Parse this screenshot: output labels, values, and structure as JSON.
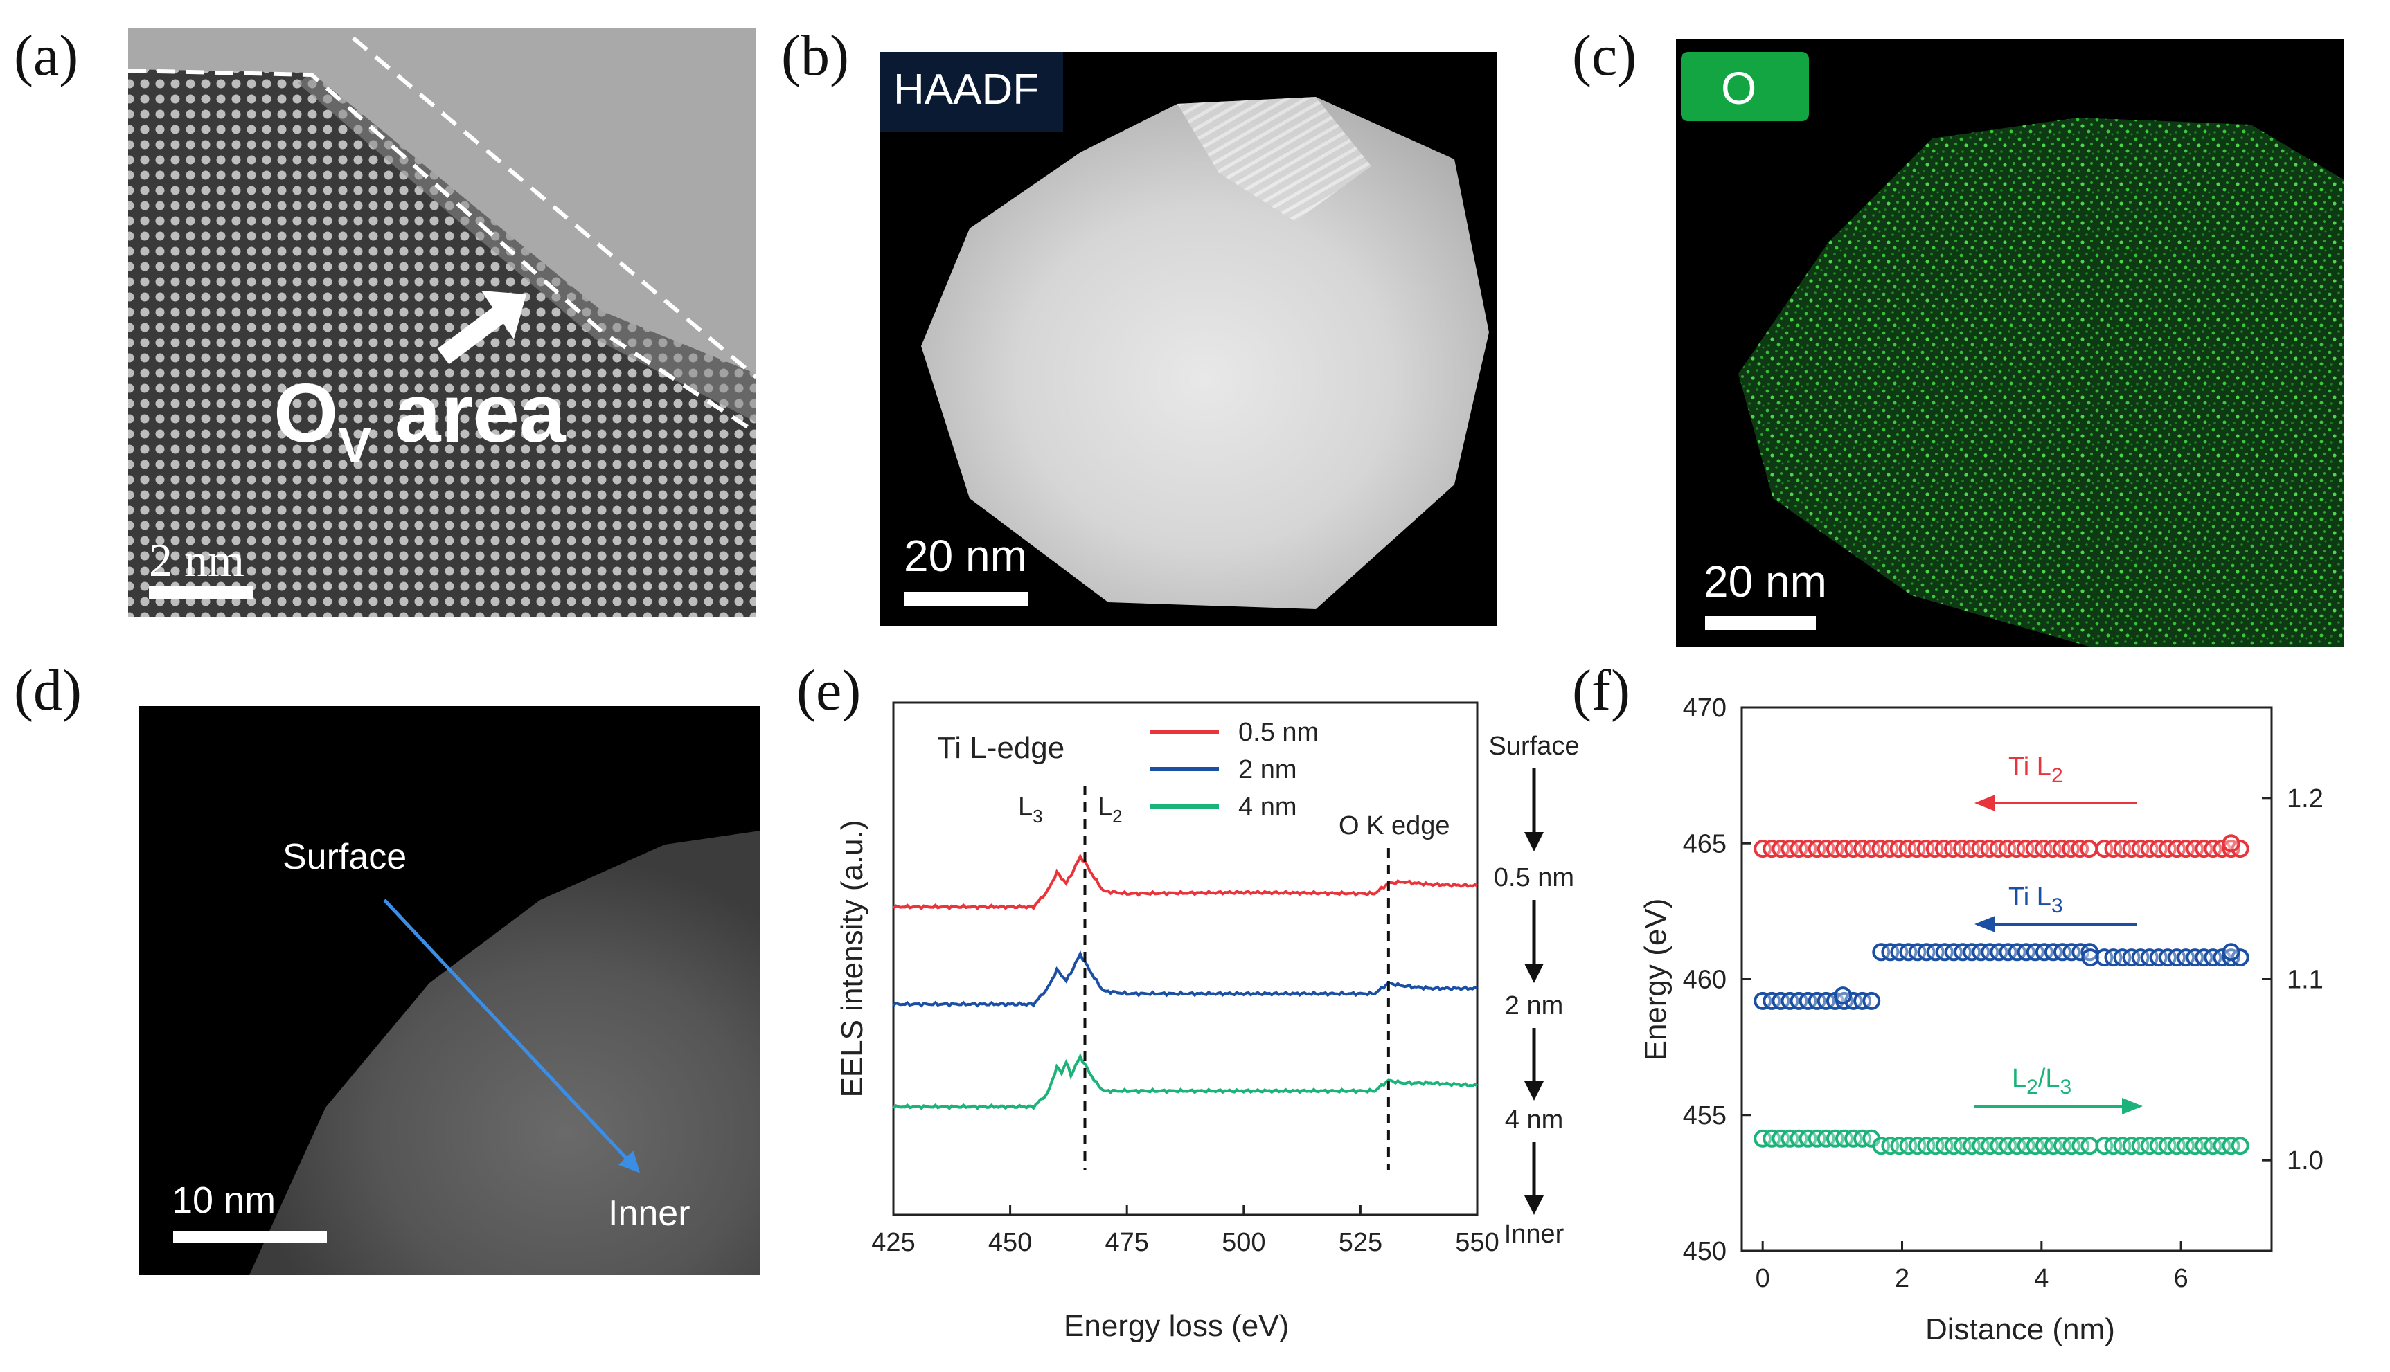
{
  "figure": {
    "panel_labels": [
      "(a)",
      "(b)",
      "(c)",
      "(d)",
      "(e)",
      "(f)"
    ],
    "panel_a": {
      "annotation_main": "O",
      "annotation_sub": "V",
      "annotation_rest": " area",
      "scalebar": "2 nm"
    },
    "panel_b": {
      "badge": "HAADF",
      "scalebar": "20 nm"
    },
    "panel_c": {
      "badge": "O",
      "scalebar": "20 nm"
    },
    "panel_d": {
      "surface_label": "Surface",
      "inner_label": "Inner",
      "scalebar": "10 nm"
    }
  },
  "colors": {
    "red": "#e8343b",
    "blue": "#1a4fa3",
    "green": "#1cb37a",
    "o_badge": "#12a542",
    "blue_arrow": "#3a8ee6"
  },
  "chart_data": [
    {
      "panel": "e",
      "type": "line",
      "title": "Ti L-edge",
      "xlabel": "Energy loss (eV)",
      "ylabel": "EELS intensity (a.u.)",
      "xlim": [
        425,
        550
      ],
      "xticks": [
        425,
        450,
        475,
        500,
        525,
        550
      ],
      "peak_labels": [
        {
          "main": "L",
          "sub": "3",
          "x": 460
        },
        {
          "main": "L",
          "sub": "2",
          "x": 465.5
        }
      ],
      "edge_label": "O K edge",
      "dashed_lines_x": [
        466,
        531
      ],
      "series": [
        {
          "name": "0.5 nm",
          "color": "#e8343b",
          "x": [
            425,
            455,
            458,
            460,
            462,
            463,
            465,
            466,
            468,
            470,
            475,
            500,
            528,
            531,
            534,
            540,
            550
          ],
          "values": [
            0.4,
            0.4,
            1.0,
            1.7,
            1.3,
            1.6,
            2.3,
            2.1,
            1.5,
            1.0,
            0.9,
            0.95,
            0.9,
            1.3,
            1.35,
            1.25,
            1.2
          ]
        },
        {
          "name": "2 nm",
          "color": "#1a4fa3",
          "x": [
            425,
            455,
            458,
            460,
            462,
            463,
            465,
            466,
            468,
            470,
            475,
            500,
            528,
            531,
            534,
            540,
            550
          ],
          "values": [
            -3.3,
            -3.3,
            -2.7,
            -2.0,
            -2.4,
            -2.1,
            -1.4,
            -1.7,
            -2.3,
            -2.8,
            -2.9,
            -2.9,
            -2.9,
            -2.5,
            -2.6,
            -2.7,
            -2.7
          ]
        },
        {
          "name": "4 nm",
          "color": "#1cb37a",
          "x": [
            425,
            455,
            458,
            460,
            461,
            462,
            463,
            465,
            466,
            468,
            470,
            475,
            500,
            528,
            531,
            534,
            540,
            550
          ],
          "values": [
            -7.2,
            -7.2,
            -6.7,
            -5.7,
            -5.9,
            -5.5,
            -6.0,
            -5.3,
            -5.6,
            -6.2,
            -6.6,
            -6.6,
            -6.6,
            -6.6,
            -6.2,
            -6.3,
            -6.3,
            -6.4
          ]
        }
      ],
      "right_annotations": [
        "Surface",
        "0.5 nm",
        "2 nm",
        "4 nm",
        "Inner"
      ]
    },
    {
      "panel": "f",
      "type": "scatter",
      "xlabel": "Distance (nm)",
      "ylabel": "Energy (eV)",
      "xlim": [
        -0.3,
        7.3
      ],
      "xticks": [
        0,
        2,
        4,
        6
      ],
      "ylim": [
        450,
        470
      ],
      "yticks": [
        450,
        455,
        460,
        465,
        470
      ],
      "y2lim": [
        0.95,
        1.25
      ],
      "y2ticks": [
        1.0,
        1.1,
        1.2
      ],
      "series": [
        {
          "name": "Ti L2",
          "main": "Ti L",
          "sub": "2",
          "color": "#e8343b",
          "axis": "left",
          "direction": "left",
          "segments": [
            {
              "x0": 0.0,
              "x1": 4.8,
              "y": 464.8
            },
            {
              "x0": 4.9,
              "x1": 6.85,
              "y": 464.8
            }
          ],
          "extra_points": [
            {
              "x": 6.72,
              "y": 465.0
            }
          ]
        },
        {
          "name": "Ti L3",
          "main": "Ti L",
          "sub": "3",
          "color": "#1a4fa3",
          "axis": "left",
          "direction": "left",
          "segments": [
            {
              "x0": 0.0,
              "x1": 1.6,
              "y": 459.2
            },
            {
              "x0": 1.7,
              "x1": 4.7,
              "y": 461.0
            },
            {
              "x0": 4.7,
              "x1": 4.8,
              "y": 460.8
            },
            {
              "x0": 4.9,
              "x1": 6.85,
              "y": 460.8
            }
          ],
          "extra_points": [
            {
              "x": 1.15,
              "y": 459.4
            },
            {
              "x": 6.72,
              "y": 461.0
            }
          ]
        },
        {
          "name": "L2/L3",
          "main": "L",
          "sub": "2",
          "rest": "/L",
          "sub2": "3",
          "color": "#1cb37a",
          "axis": "right",
          "direction": "right",
          "segments": [
            {
              "x0": 0.0,
              "x1": 1.6,
              "y": 1.012
            },
            {
              "x0": 1.7,
              "x1": 4.8,
              "y": 1.008
            },
            {
              "x0": 4.9,
              "x1": 6.85,
              "y": 1.008
            }
          ],
          "extra_points": []
        }
      ]
    }
  ]
}
